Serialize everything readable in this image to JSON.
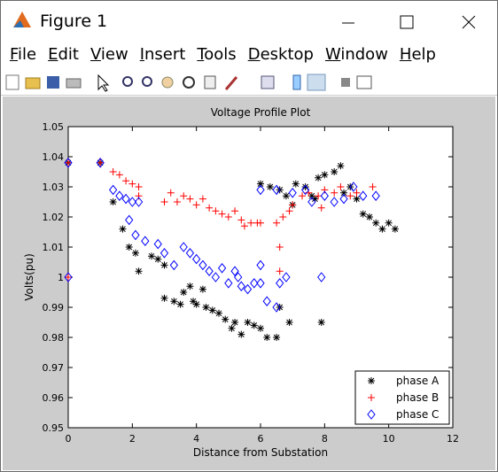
{
  "window": {
    "title": "Figure 1",
    "menu": [
      "File",
      "Edit",
      "View",
      "Insert",
      "Tools",
      "Desktop",
      "Window",
      "Help"
    ]
  },
  "chart_data": {
    "type": "scatter",
    "title": "Voltage Profile Plot",
    "x_label": "Distance from Substation",
    "y_label": "Volts(pu)",
    "xlim": [
      0,
      12
    ],
    "xticks": [
      0,
      2,
      4,
      6,
      8,
      10,
      12
    ],
    "ylim": [
      0.95,
      1.05
    ],
    "yticks": [
      0.95,
      0.96,
      0.97,
      0.98,
      0.99,
      1,
      1.01,
      1.02,
      1.03,
      1.04,
      1.05
    ],
    "legend": "southeast",
    "series": [
      {
        "name": "phase A",
        "color": "#000000",
        "marker": "star",
        "x": [
          0,
          1,
          1.4,
          1.7,
          1.9,
          2.1,
          2.2,
          2.6,
          2.8,
          3.0,
          3.0,
          3.3,
          3.5,
          3.6,
          3.8,
          3.9,
          4.0,
          4.2,
          4.3,
          4.5,
          4.7,
          4.9,
          5.1,
          5.2,
          5.4,
          5.6,
          5.8,
          6.0,
          6.2,
          6.5,
          6.6,
          6.9,
          7.9,
          6.0,
          6.3,
          6.6,
          6.8,
          7.1,
          7.4,
          7.6,
          7.8,
          8.0,
          8.3,
          8.5,
          8.6,
          8.8,
          9.0,
          9.2,
          9.4,
          9.6,
          9.8,
          10.0,
          10.2,
          7.0,
          7.7
        ],
        "values": [
          1.038,
          1.038,
          1.025,
          1.016,
          1.01,
          1.008,
          1.002,
          1.007,
          1.006,
          1.004,
          0.993,
          0.992,
          0.991,
          0.995,
          0.997,
          0.992,
          0.991,
          0.996,
          0.99,
          0.989,
          0.988,
          0.986,
          0.983,
          0.985,
          0.981,
          0.985,
          0.984,
          0.983,
          0.98,
          0.98,
          0.99,
          0.985,
          0.985,
          1.031,
          1.03,
          1.029,
          1.027,
          1.031,
          1.03,
          1.027,
          1.033,
          1.034,
          1.035,
          1.037,
          1.028,
          1.03,
          1.026,
          1.021,
          1.02,
          1.018,
          1.016,
          1.018,
          1.016,
          1.024,
          1.026
        ]
      },
      {
        "name": "phase B",
        "color": "#ff0000",
        "marker": "plus",
        "x": [
          0,
          1,
          1.4,
          1.6,
          1.8,
          2.0,
          2.2,
          2.2,
          3.0,
          3.2,
          3.4,
          3.6,
          3.8,
          4.0,
          4.2,
          4.4,
          4.6,
          4.8,
          5.0,
          5.2,
          5.4,
          5.5,
          5.7,
          5.9,
          6.0,
          6.5,
          6.6,
          6.7,
          6.9,
          7.0,
          7.3,
          7.5,
          7.8,
          8.0,
          8.3,
          8.5,
          8.8,
          9.0,
          9.5,
          6.6,
          0,
          7.9
        ],
        "values": [
          1.038,
          1.038,
          1.035,
          1.034,
          1.032,
          1.031,
          1.03,
          1.027,
          1.025,
          1.028,
          1.025,
          1.027,
          1.026,
          1.024,
          1.026,
          1.023,
          1.022,
          1.021,
          1.02,
          1.022,
          1.019,
          1.017,
          1.018,
          1.018,
          1.018,
          1.018,
          1.002,
          1.02,
          1.022,
          1.024,
          1.027,
          1.028,
          1.027,
          1.029,
          1.028,
          1.03,
          1.027,
          1.028,
          1.03,
          1.01,
          1.0,
          1.023
        ]
      },
      {
        "name": "phase C",
        "color": "#0000ff",
        "marker": "diamond",
        "x": [
          0,
          0,
          1,
          1.4,
          1.6,
          1.8,
          2.0,
          2.2,
          1.9,
          2.1,
          2.4,
          2.8,
          3.0,
          3.3,
          3.6,
          3.8,
          4.0,
          4.2,
          4.4,
          4.6,
          4.8,
          5.0,
          5.2,
          5.4,
          5.6,
          5.8,
          6.0,
          6.2,
          6.5,
          6.6,
          6.8,
          7.9,
          6.0,
          6.5,
          7.0,
          7.4,
          7.6,
          8.0,
          8.3,
          8.6,
          8.9,
          9.2,
          9.6,
          5.3,
          6.0
        ],
        "values": [
          1.038,
          1.0,
          1.038,
          1.029,
          1.027,
          1.026,
          1.025,
          1.025,
          1.019,
          1.014,
          1.012,
          1.011,
          1.008,
          1.004,
          1.01,
          1.008,
          1.006,
          1.004,
          1.002,
          1.0,
          1.003,
          0.998,
          1.002,
          0.997,
          0.996,
          0.998,
          0.998,
          0.992,
          0.99,
          0.998,
          1.0,
          1.0,
          1.029,
          1.029,
          1.028,
          1.029,
          1.025,
          1.027,
          1.025,
          1.026,
          1.03,
          1.027,
          1.027,
          1.0,
          1.004
        ]
      }
    ]
  }
}
